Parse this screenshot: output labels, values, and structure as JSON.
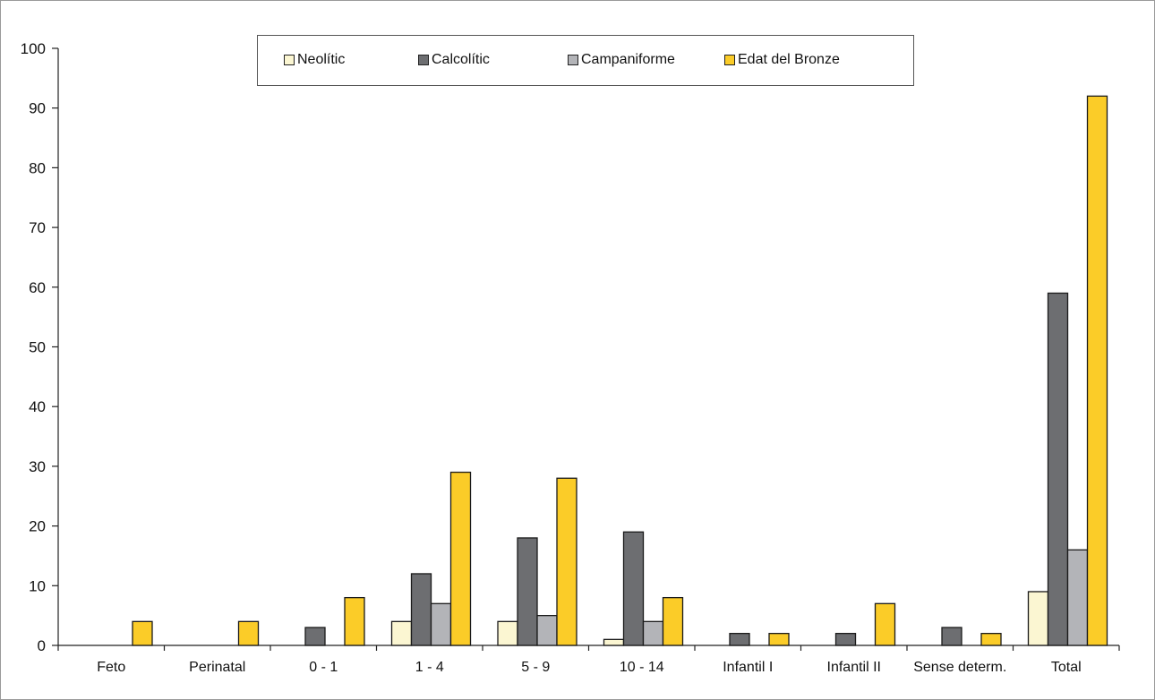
{
  "chart_data": {
    "type": "bar",
    "title": "",
    "xlabel": "",
    "ylabel": "",
    "ylim": [
      0,
      100
    ],
    "yticks": [
      "0",
      "10",
      "20",
      "30",
      "40",
      "50",
      "60",
      "70",
      "80",
      "90",
      "100"
    ],
    "grid": false,
    "legend_position": "top-center",
    "categories": [
      "Feto",
      "Perinatal",
      "0 - 1",
      "1 - 4",
      "5 - 9",
      "10 - 14",
      "Infantil I",
      "Infantil II",
      "Sense determ.",
      "Total"
    ],
    "series": [
      {
        "name": "Neolític",
        "color": "#fbf6d2",
        "values": [
          0,
          0,
          0,
          4,
          4,
          1,
          0,
          0,
          0,
          9
        ]
      },
      {
        "name": "Calcolític",
        "color": "#6d6e71",
        "values": [
          0,
          0,
          3,
          12,
          18,
          19,
          2,
          2,
          3,
          59
        ]
      },
      {
        "name": "Campaniforme",
        "color": "#b3b4b8",
        "values": [
          0,
          0,
          0,
          7,
          5,
          4,
          0,
          0,
          0,
          16
        ]
      },
      {
        "name": "Edat del Bronze",
        "color": "#fbcc28",
        "values": [
          4,
          4,
          8,
          29,
          28,
          8,
          2,
          7,
          2,
          92
        ]
      }
    ]
  }
}
